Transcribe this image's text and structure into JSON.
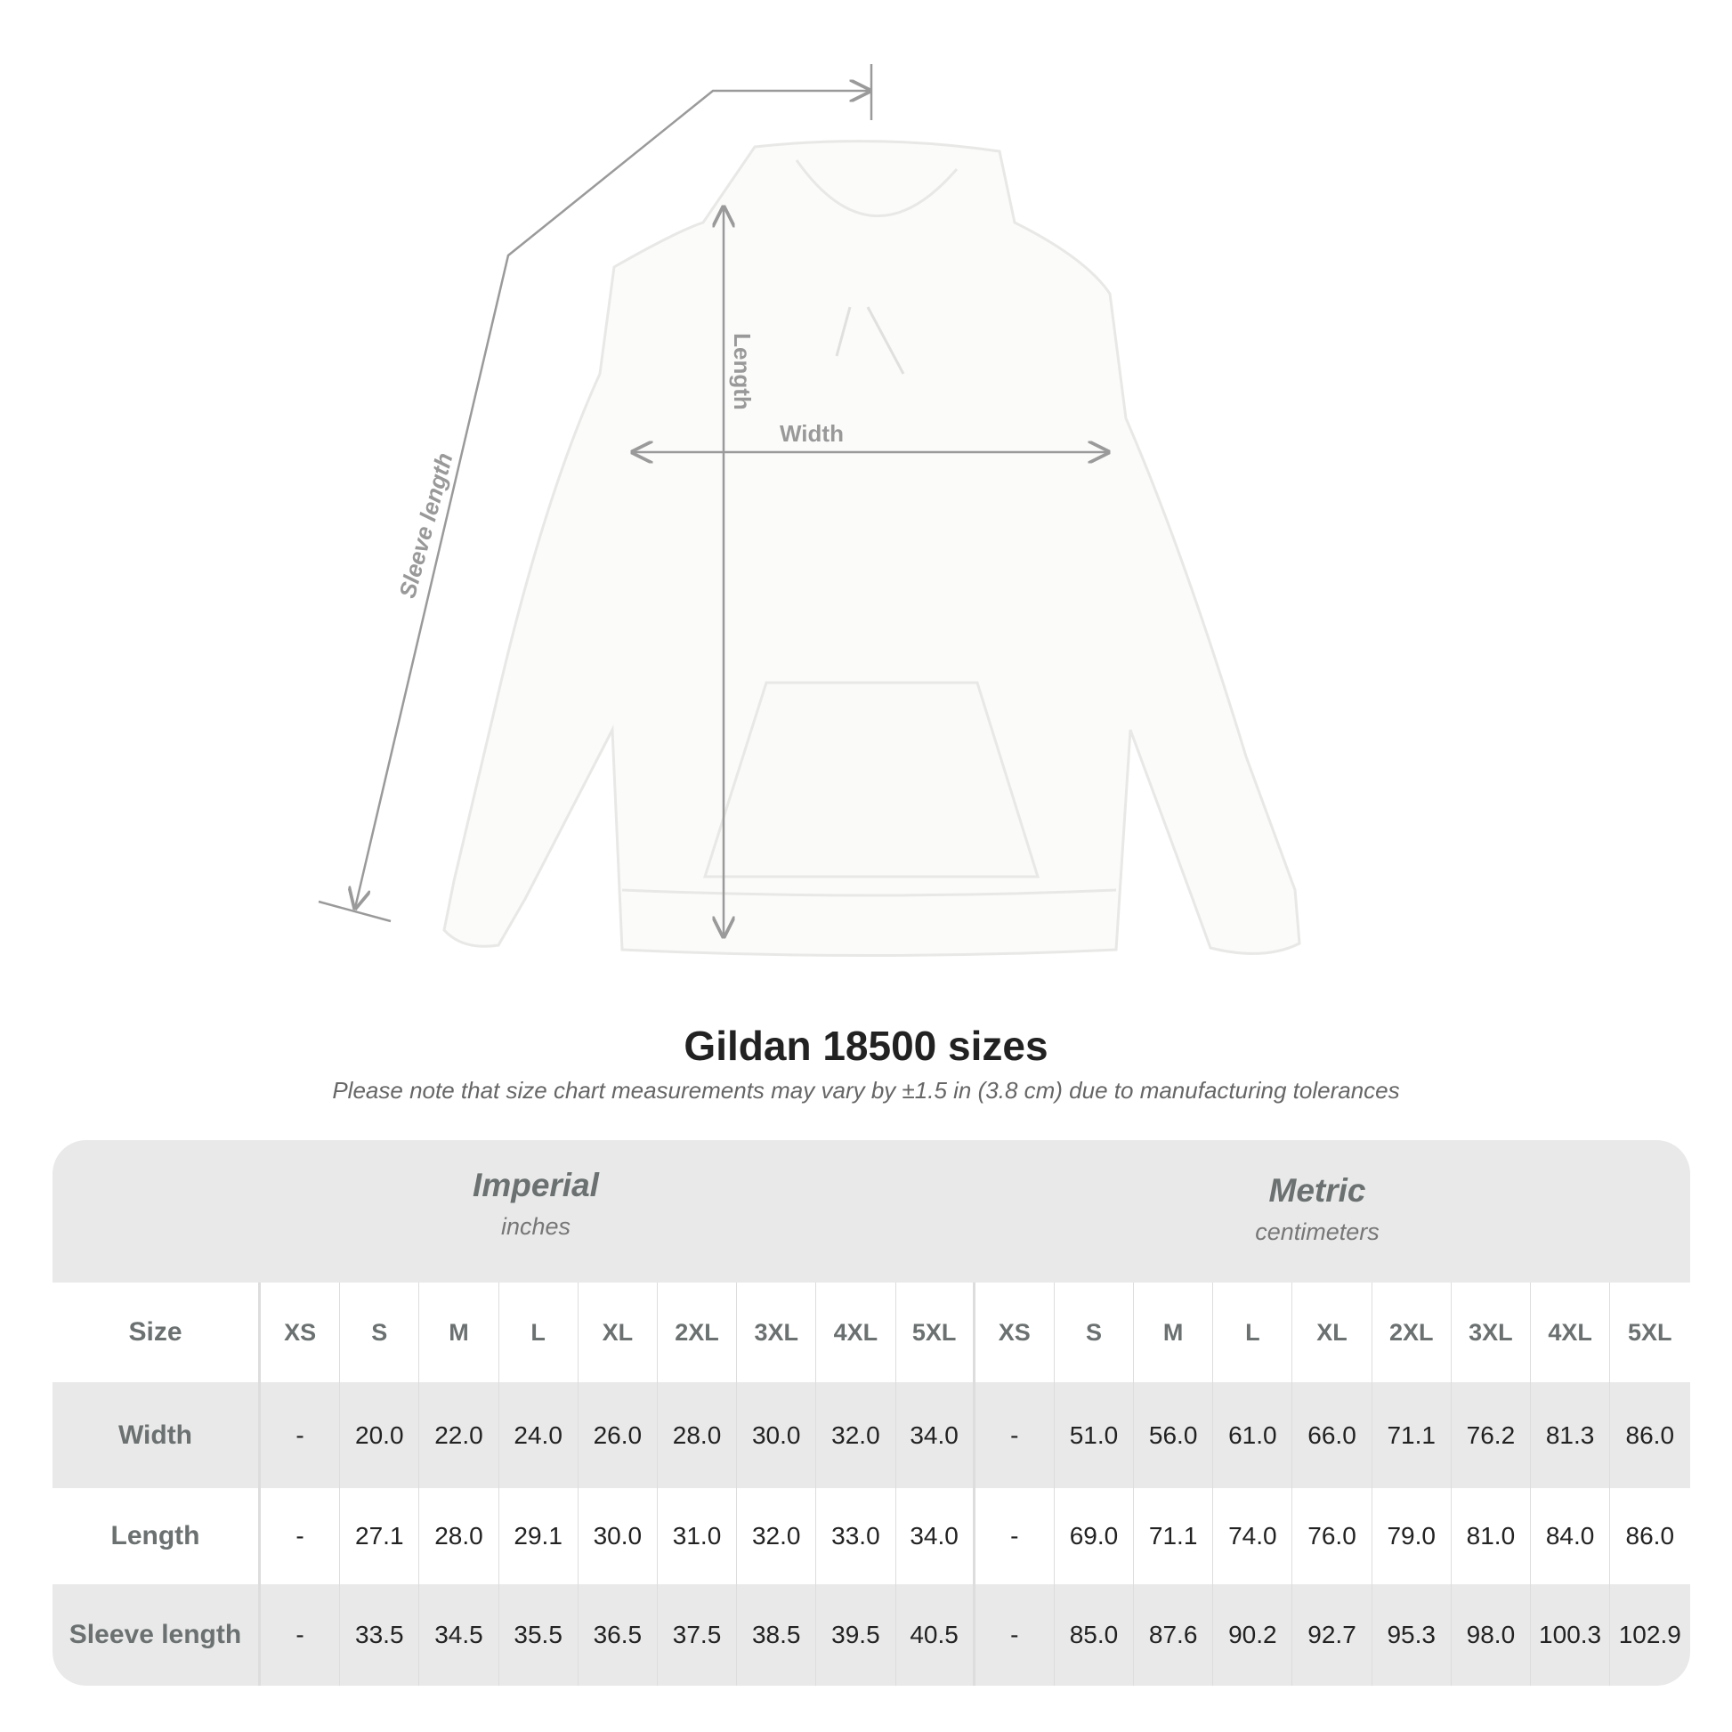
{
  "diagram": {
    "labels": {
      "sleeve": "Sleeve length",
      "length": "Length",
      "width": "Width"
    },
    "line_color": "#9a9a9a"
  },
  "title": "Gildan 18500 sizes",
  "note": "Please note that size chart measurements may vary by ±1.5 in (3.8 cm) due to manufacturing tolerances",
  "table": {
    "imperial": {
      "name": "Imperial",
      "unit": "inches"
    },
    "metric": {
      "name": "Metric",
      "unit": "centimeters"
    },
    "size_label": "Size",
    "sizes": [
      "XS",
      "S",
      "M",
      "L",
      "XL",
      "2XL",
      "3XL",
      "4XL",
      "5XL",
      "XS",
      "S",
      "M",
      "L",
      "XL",
      "2XL",
      "3XL",
      "4XL",
      "5XL"
    ],
    "rows": [
      {
        "label": "Width",
        "values": [
          "-",
          "20.0",
          "22.0",
          "24.0",
          "26.0",
          "28.0",
          "30.0",
          "32.0",
          "34.0",
          "-",
          "51.0",
          "56.0",
          "61.0",
          "66.0",
          "71.1",
          "76.2",
          "81.3",
          "86.0"
        ]
      },
      {
        "label": "Length",
        "values": [
          "-",
          "27.1",
          "28.0",
          "29.1",
          "30.0",
          "31.0",
          "32.0",
          "33.0",
          "34.0",
          "-",
          "69.0",
          "71.1",
          "74.0",
          "76.0",
          "79.0",
          "81.0",
          "84.0",
          "86.0"
        ]
      },
      {
        "label": "Sleeve length",
        "values": [
          "-",
          "33.5",
          "34.5",
          "35.5",
          "36.5",
          "37.5",
          "38.5",
          "39.5",
          "40.5",
          "-",
          "85.0",
          "87.6",
          "90.2",
          "92.7",
          "95.3",
          "98.0",
          "100.3",
          "102.9"
        ]
      }
    ],
    "colors": {
      "band": "#e9e9e9",
      "label": "#6b7070",
      "value": "#222222"
    }
  }
}
